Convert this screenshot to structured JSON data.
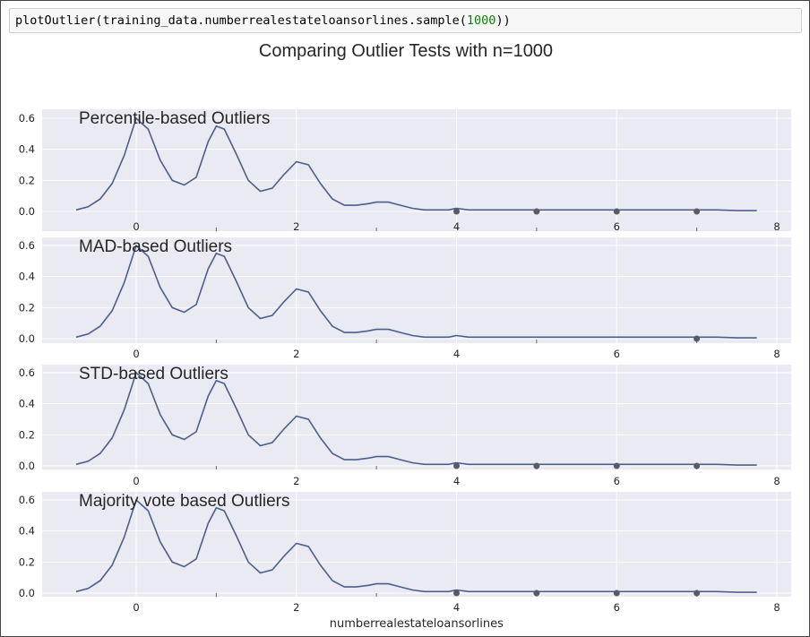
{
  "cell": {
    "code_prefix": "plotOutlier(training_data.numberrealestateloansorlines.sample(",
    "code_number": "1000",
    "code_suffix": "))"
  },
  "chart_data": {
    "type": "line",
    "title": "Comparing Outlier Tests with n=1000",
    "xlabel": "numberrealestateloansorlines",
    "ylabel": "",
    "xlim": [
      -1.0,
      8.2
    ],
    "ylim": [
      0,
      0.65
    ],
    "xticks": [
      0,
      2,
      4,
      6,
      8
    ],
    "xtick_labels": [
      "0",
      "2",
      "4",
      "6",
      "8"
    ],
    "yticks": [
      0.0,
      0.2,
      0.4,
      0.6
    ],
    "ytick_labels": [
      "0.0",
      "0.2",
      "0.4",
      "0.6"
    ],
    "grid": true,
    "colors": {
      "line": "#4c5e8c",
      "marker": "#5a5a66",
      "background": "#eaeaf2",
      "grid": "#ffffff",
      "tick": "#262626"
    },
    "density": {
      "name": "KDE",
      "x": [
        -0.75,
        -0.6,
        -0.45,
        -0.3,
        -0.15,
        0.0,
        0.15,
        0.3,
        0.45,
        0.6,
        0.75,
        0.9,
        1.0,
        1.1,
        1.25,
        1.4,
        1.55,
        1.7,
        1.85,
        2.0,
        2.15,
        2.3,
        2.45,
        2.6,
        2.75,
        2.9,
        3.0,
        3.15,
        3.3,
        3.45,
        3.6,
        3.75,
        3.9,
        4.0,
        4.15,
        4.3,
        4.5,
        4.75,
        5.0,
        5.25,
        5.5,
        5.75,
        6.0,
        6.25,
        6.5,
        6.75,
        7.0,
        7.25,
        7.5,
        7.75
      ],
      "y": [
        0.01,
        0.03,
        0.08,
        0.18,
        0.36,
        0.6,
        0.53,
        0.33,
        0.2,
        0.17,
        0.22,
        0.45,
        0.55,
        0.53,
        0.37,
        0.2,
        0.13,
        0.15,
        0.24,
        0.32,
        0.3,
        0.18,
        0.08,
        0.04,
        0.04,
        0.05,
        0.06,
        0.06,
        0.04,
        0.02,
        0.01,
        0.01,
        0.01,
        0.02,
        0.01,
        0.01,
        0.01,
        0.01,
        0.01,
        0.01,
        0.01,
        0.01,
        0.01,
        0.01,
        0.01,
        0.01,
        0.01,
        0.01,
        0.005,
        0.005
      ]
    },
    "panels": [
      {
        "title": "Percentile-based Outliers",
        "outliers_x": [
          4,
          5,
          6,
          7
        ]
      },
      {
        "title": "MAD-based Outliers",
        "outliers_x": [
          7
        ]
      },
      {
        "title": "STD-based Outliers",
        "outliers_x": [
          4,
          5,
          6,
          7
        ]
      },
      {
        "title": "Majority vote based Outliers",
        "outliers_x": [
          4,
          5,
          6,
          7
        ]
      }
    ]
  }
}
